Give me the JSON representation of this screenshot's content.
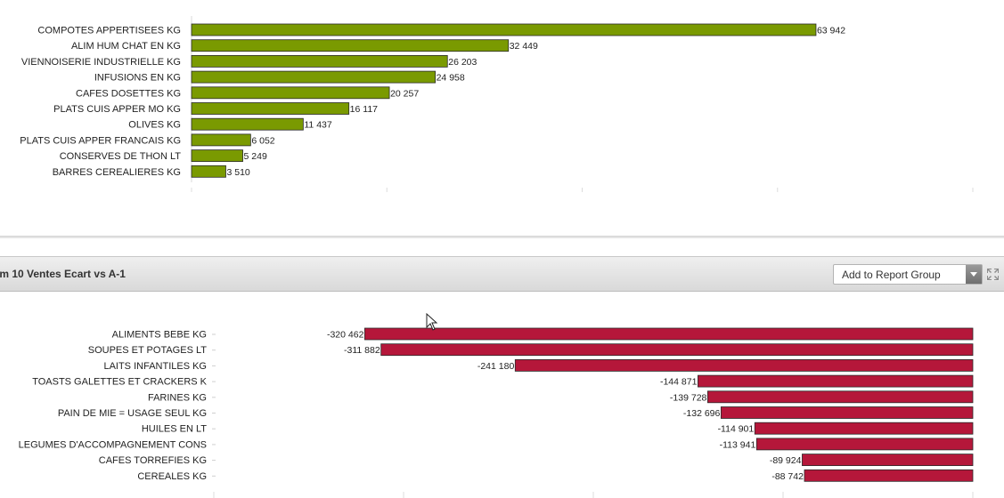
{
  "chart_data": [
    {
      "type": "bar",
      "orientation": "horizontal",
      "categories": [
        "COMPOTES APPERTISEES KG",
        "ALIM HUM CHAT EN KG",
        "VIENNOISERIE INDUSTRIELLE KG",
        "INFUSIONS EN KG",
        "CAFES DOSETTES KG",
        "PLATS CUIS APPER MO KG",
        "OLIVES KG",
        "PLATS CUIS APPER FRANCAIS KG",
        "CONSERVES DE THON LT",
        "BARRES CEREALIERES KG"
      ],
      "values": [
        63942,
        32449,
        26203,
        24958,
        20257,
        16117,
        11437,
        6052,
        5249,
        3510
      ],
      "value_labels": [
        "63 942",
        "32 449",
        "26 203",
        "24 958",
        "20 257",
        "16 117",
        "11 437",
        "6 052",
        "5 249",
        "3 510"
      ],
      "xlim": [
        0,
        80000
      ],
      "color": "#7a9a01",
      "grid": false
    },
    {
      "type": "bar",
      "orientation": "horizontal",
      "categories": [
        "ALIMENTS BEBE KG",
        "SOUPES ET POTAGES LT",
        "LAITS INFANTILES KG",
        "TOASTS GALETTES ET CRACKERS K",
        "FARINES KG",
        "PAIN DE MIE = USAGE SEUL KG",
        "HUILES EN LT",
        "LEGUMES D'ACCOMPAGNEMENT CONS",
        "CAFES TORREFIES KG",
        "CEREALES KG"
      ],
      "values": [
        -320462,
        -311882,
        -241180,
        -144871,
        -139728,
        -132696,
        -114901,
        -113941,
        -89924,
        -88742
      ],
      "value_labels": [
        "-320 462",
        "-311 882",
        "-241 180",
        "-144 871",
        "-139 728",
        "-132 696",
        "-114 901",
        "-113 941",
        "-89 924",
        "-88 742"
      ],
      "xlim": [
        -400000,
        0
      ],
      "color": "#b5173a",
      "grid": false
    }
  ],
  "panel": {
    "title": "om 10 Ventes Ecart vs A-1",
    "report_group_label": "Add to Report Group"
  },
  "icons": {
    "dropdown": "chevron-down-icon",
    "expand": "expand-icon",
    "cursor": "mouse-pointer-icon"
  }
}
